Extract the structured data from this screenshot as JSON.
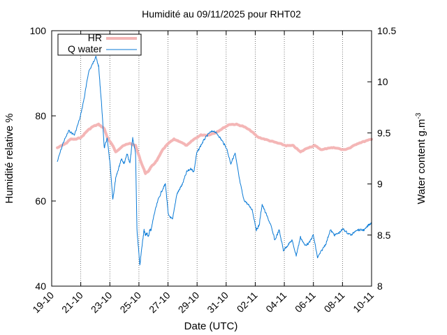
{
  "chart_data": {
    "type": "line",
    "title": "Humidité au 09/11/2025 pour RHT02",
    "xlabel": "Date (UTC)",
    "ylabel_left": "Humidité relative %",
    "ylabel_right_main": "Water content g.m",
    "ylabel_right_sup": "-3",
    "x_ticks": [
      "19-10",
      "21-10",
      "23-10",
      "25-10",
      "27-10",
      "29-10",
      "31-10",
      "02-11",
      "04-11",
      "06-11",
      "08-11",
      "10-11"
    ],
    "x_range_days": [
      0,
      22.5
    ],
    "y_left_range": [
      40,
      100
    ],
    "y_left_ticks": [
      "40",
      "60",
      "80",
      "100"
    ],
    "y_right_range": [
      8,
      10.5
    ],
    "y_right_ticks": [
      "8",
      "8.5",
      "9",
      "9.5",
      "10",
      "10.5"
    ],
    "grid": "vertical-dotted",
    "legend_position": "top-left",
    "legend": [
      {
        "label": "HR",
        "color": "#f4b6b6"
      },
      {
        "label": "Q water",
        "color": "#0a7ad6"
      }
    ],
    "series": [
      {
        "name": "HR",
        "axis": "left",
        "color": "#f4b6b6",
        "x_days": [
          0.4,
          1.0,
          1.3,
          1.7,
          2.1,
          2.5,
          2.9,
          3.3,
          3.7,
          3.9,
          4.1,
          4.3,
          4.5,
          5.0,
          5.5,
          5.9,
          6.3,
          6.6,
          6.8,
          7.0,
          7.4,
          7.8,
          8.2,
          8.6,
          9.0,
          9.5,
          10.0,
          10.5,
          11.0,
          11.5,
          12.0,
          12.5,
          13.0,
          13.5,
          14.0,
          14.5,
          15.0,
          15.5,
          16.0,
          16.5,
          17.0,
          17.5,
          18.0,
          18.5,
          19.0,
          19.5,
          20.0,
          20.5,
          21.0,
          21.5,
          22.0,
          22.5
        ],
        "values": [
          72.5,
          73.5,
          74.5,
          74.5,
          75.0,
          76.5,
          77.5,
          78.0,
          77.0,
          75.0,
          74.0,
          73.0,
          71.5,
          73.0,
          73.5,
          73.0,
          69.0,
          66.5,
          67.0,
          68.0,
          69.5,
          72.0,
          73.5,
          74.5,
          74.0,
          73.0,
          74.5,
          75.5,
          75.5,
          76.0,
          77.0,
          78.0,
          78.0,
          77.5,
          76.5,
          75.0,
          74.5,
          74.0,
          73.5,
          73.0,
          73.0,
          71.5,
          72.5,
          73.0,
          72.0,
          72.5,
          72.5,
          72.0,
          72.5,
          73.5,
          74.0,
          74.5
        ]
      },
      {
        "name": "Q water",
        "axis": "right",
        "color": "#0a7ad6",
        "x_days": [
          0.4,
          0.8,
          1.2,
          1.6,
          2.0,
          2.3,
          2.6,
          2.9,
          3.1,
          3.3,
          3.5,
          3.7,
          3.9,
          4.1,
          4.3,
          4.5,
          4.7,
          4.9,
          5.1,
          5.3,
          5.5,
          5.7,
          5.9,
          6.0,
          6.2,
          6.4,
          6.5,
          6.6,
          6.7,
          6.8,
          6.9,
          7.0,
          7.2,
          7.5,
          7.8,
          8.0,
          8.2,
          8.5,
          8.8,
          9.0,
          9.2,
          9.5,
          9.8,
          10.0,
          10.2,
          10.5,
          10.8,
          11.1,
          11.4,
          11.7,
          12.0,
          12.3,
          12.6,
          12.9,
          13.2,
          13.5,
          13.8,
          14.1,
          14.4,
          14.6,
          14.8,
          15.1,
          15.4,
          15.7,
          16.0,
          16.3,
          16.6,
          16.9,
          17.2,
          17.5,
          17.8,
          18.1,
          18.4,
          18.7,
          19.0,
          19.3,
          19.6,
          19.9,
          20.2,
          20.5,
          20.8,
          21.1,
          21.4,
          21.7,
          22.0,
          22.3,
          22.5
        ],
        "values": [
          9.22,
          9.4,
          9.52,
          9.48,
          9.65,
          9.85,
          10.1,
          10.18,
          10.25,
          10.15,
          9.8,
          9.35,
          9.45,
          9.2,
          8.85,
          9.05,
          9.15,
          9.25,
          9.2,
          9.3,
          9.2,
          9.45,
          9.3,
          8.55,
          8.2,
          8.45,
          8.55,
          8.5,
          8.52,
          8.48,
          8.55,
          8.55,
          8.7,
          8.85,
          8.95,
          9.0,
          8.7,
          8.65,
          8.9,
          8.95,
          9.0,
          9.12,
          9.15,
          9.12,
          9.3,
          9.38,
          9.45,
          9.5,
          9.52,
          9.48,
          9.42,
          9.35,
          9.2,
          9.3,
          9.05,
          8.85,
          8.8,
          8.75,
          8.55,
          8.6,
          8.8,
          8.7,
          8.6,
          8.45,
          8.55,
          8.35,
          8.4,
          8.45,
          8.3,
          8.48,
          8.4,
          8.42,
          8.5,
          8.28,
          8.35,
          8.42,
          8.55,
          8.5,
          8.52,
          8.56,
          8.52,
          8.5,
          8.55,
          8.55,
          8.55,
          8.6,
          8.62
        ]
      }
    ]
  }
}
